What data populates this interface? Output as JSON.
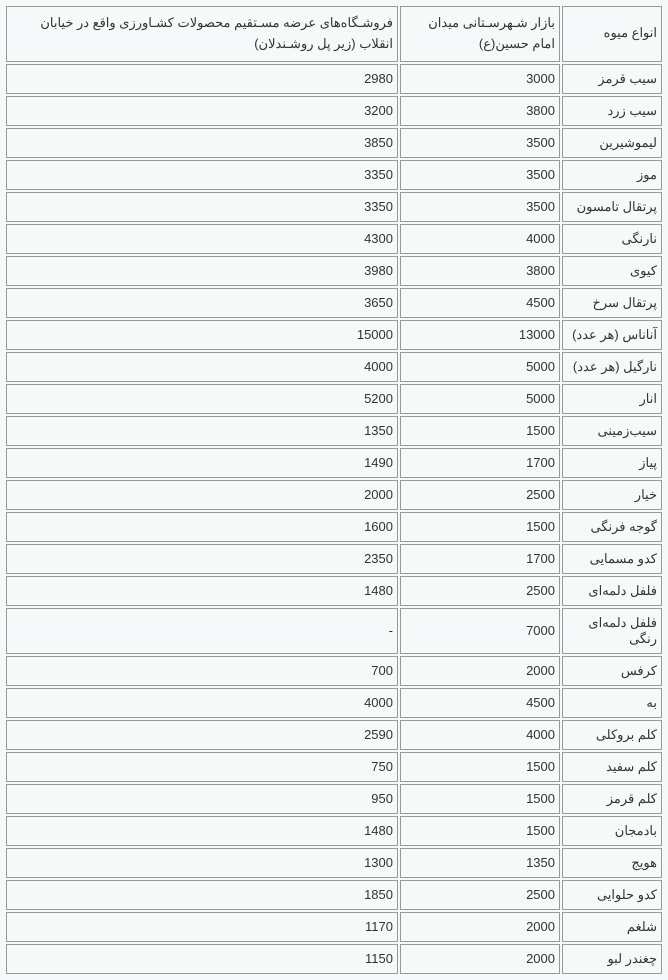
{
  "table": {
    "headers": {
      "col1": "انواع میوه",
      "col2": "بازار شـهرسـتانی میدان امام حسین(ع)",
      "col3": "فروشـگاه‌های عرضه مسـتقیم محصولات کشـاورزی واقع در خیابان انقلاب (زیر پل روشـندلان)"
    },
    "rows": [
      {
        "name": "سیب قرمز",
        "p1": "3000",
        "p2": "2980"
      },
      {
        "name": "سیب زرد",
        "p1": "3800",
        "p2": "3200"
      },
      {
        "name": "لیموشیرین",
        "p1": "3500",
        "p2": "3850"
      },
      {
        "name": "موز",
        "p1": "3500",
        "p2": "3350"
      },
      {
        "name": "پرتقال تامسون",
        "p1": "3500",
        "p2": "3350"
      },
      {
        "name": "نارنگی",
        "p1": "4000",
        "p2": "4300"
      },
      {
        "name": "کیوی",
        "p1": "3800",
        "p2": "3980"
      },
      {
        "name": "پرتقال سرخ",
        "p1": "4500",
        "p2": "3650"
      },
      {
        "name": "آناناس (هر عدد)",
        "p1": "13000",
        "p2": "15000"
      },
      {
        "name": "نارگیل (هر عدد)",
        "p1": "5000",
        "p2": "4000"
      },
      {
        "name": "انار",
        "p1": "5000",
        "p2": "5200"
      },
      {
        "name": "سیب‌زمینی",
        "p1": "1500",
        "p2": "1350"
      },
      {
        "name": "پیاز",
        "p1": "1700",
        "p2": "1490"
      },
      {
        "name": "خیار",
        "p1": "2500",
        "p2": "2000"
      },
      {
        "name": "گوجه فرنگی",
        "p1": "1500",
        "p2": "1600"
      },
      {
        "name": "کدو مسمایی",
        "p1": "1700",
        "p2": "2350"
      },
      {
        "name": "فلفل دلمه‌ای",
        "p1": "2500",
        "p2": "1480"
      },
      {
        "name": "فلفل دلمه‌ای رنگی",
        "p1": "7000",
        "p2": "-"
      },
      {
        "name": "کرفس",
        "p1": "2000",
        "p2": "700"
      },
      {
        "name": "به",
        "p1": "4500",
        "p2": "4000"
      },
      {
        "name": "کلم بروکلی",
        "p1": "4000",
        "p2": "2590"
      },
      {
        "name": "کلم سفید",
        "p1": "1500",
        "p2": "750"
      },
      {
        "name": "کلم قرمز",
        "p1": "1500",
        "p2": "950"
      },
      {
        "name": "بادمجان",
        "p1": "1500",
        "p2": "1480"
      },
      {
        "name": "هویج",
        "p1": "1350",
        "p2": "1300"
      },
      {
        "name": "کدو حلوایی",
        "p1": "2500",
        "p2": "1850"
      },
      {
        "name": "شلغم",
        "p1": "2000",
        "p2": "1170"
      },
      {
        "name": "چغندر لبو",
        "p1": "2000",
        "p2": "1150"
      }
    ]
  }
}
